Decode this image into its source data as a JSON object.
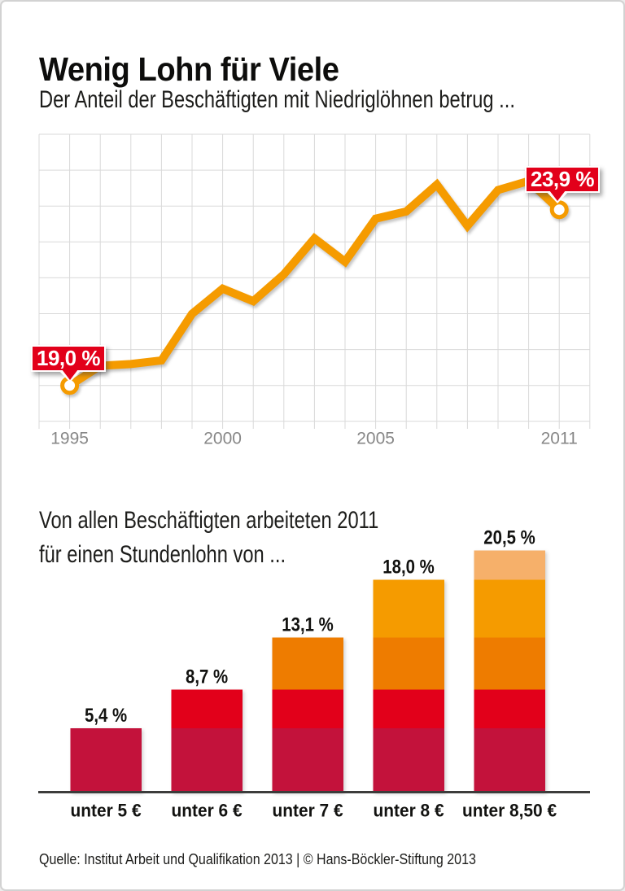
{
  "header": {
    "title": "Wenig Lohn für Viele",
    "subtitle": "Der Anteil der Beschäftigten mit Niedriglöhnen betrug ..."
  },
  "bar_header": {
    "line1": "Von allen Beschäftigten arbeiteten 2011",
    "line2": "für einen Stundenlohn von ..."
  },
  "footer": {
    "source": "Quelle: Institut Arbeit und Qualifikation 2013 | © Hans-Böckler-Stiftung 2013"
  },
  "colors": {
    "orange": "#f59b00",
    "dark_orange": "#ee7c00",
    "light_orange": "#f6b06a",
    "red": "#e2001a",
    "dark_red": "#c3123b",
    "callout_red": "#e2001a",
    "grid": "#d9d9d9",
    "tick_label": "#878787",
    "axis": "#3c3c3b",
    "label_text": "#121210"
  },
  "chart_data": [
    {
      "type": "line",
      "title": "Der Anteil der Beschäftigten mit Niedriglöhnen betrug ...",
      "x": [
        1995,
        1996,
        1997,
        1998,
        1999,
        2000,
        2001,
        2002,
        2003,
        2004,
        2005,
        2006,
        2007,
        2008,
        2009,
        2010,
        2011
      ],
      "values": [
        19.0,
        19.55,
        19.6,
        19.7,
        21.0,
        21.7,
        21.35,
        22.1,
        23.1,
        22.45,
        23.65,
        23.85,
        24.6,
        23.45,
        24.45,
        24.7,
        23.9
      ],
      "unit": "%",
      "ylim": [
        18,
        26
      ],
      "grid": true,
      "line_color": "#f59b00",
      "x_ticks": [
        {
          "year": 1995,
          "label": "1995"
        },
        {
          "year": 2000,
          "label": "2000"
        },
        {
          "year": 2005,
          "label": "2005"
        },
        {
          "year": 2011,
          "label": "2011"
        }
      ],
      "annotations": [
        {
          "year": 1995,
          "value": 19.0,
          "label": "19,0 %"
        },
        {
          "year": 2011,
          "value": 23.9,
          "label": "23,9 %"
        }
      ]
    },
    {
      "type": "bar",
      "title": "Von allen Beschäftigten arbeiteten 2011 für einen Stundenlohn von ...",
      "categories": [
        "unter 5 €",
        "unter 6 €",
        "unter 7 €",
        "unter 8 €",
        "unter 8,50 €"
      ],
      "values": [
        5.4,
        8.7,
        13.1,
        18.0,
        20.5
      ],
      "value_labels": [
        "5,4 %",
        "8,7 %",
        "13,1 %",
        "18,0 %",
        "20,5 %"
      ],
      "stacked": true,
      "segment_colors": [
        "#c3123b",
        "#e2001a",
        "#ee7c00",
        "#f59b00",
        "#f6b06a"
      ],
      "xlabel": "",
      "ylabel": ""
    }
  ]
}
